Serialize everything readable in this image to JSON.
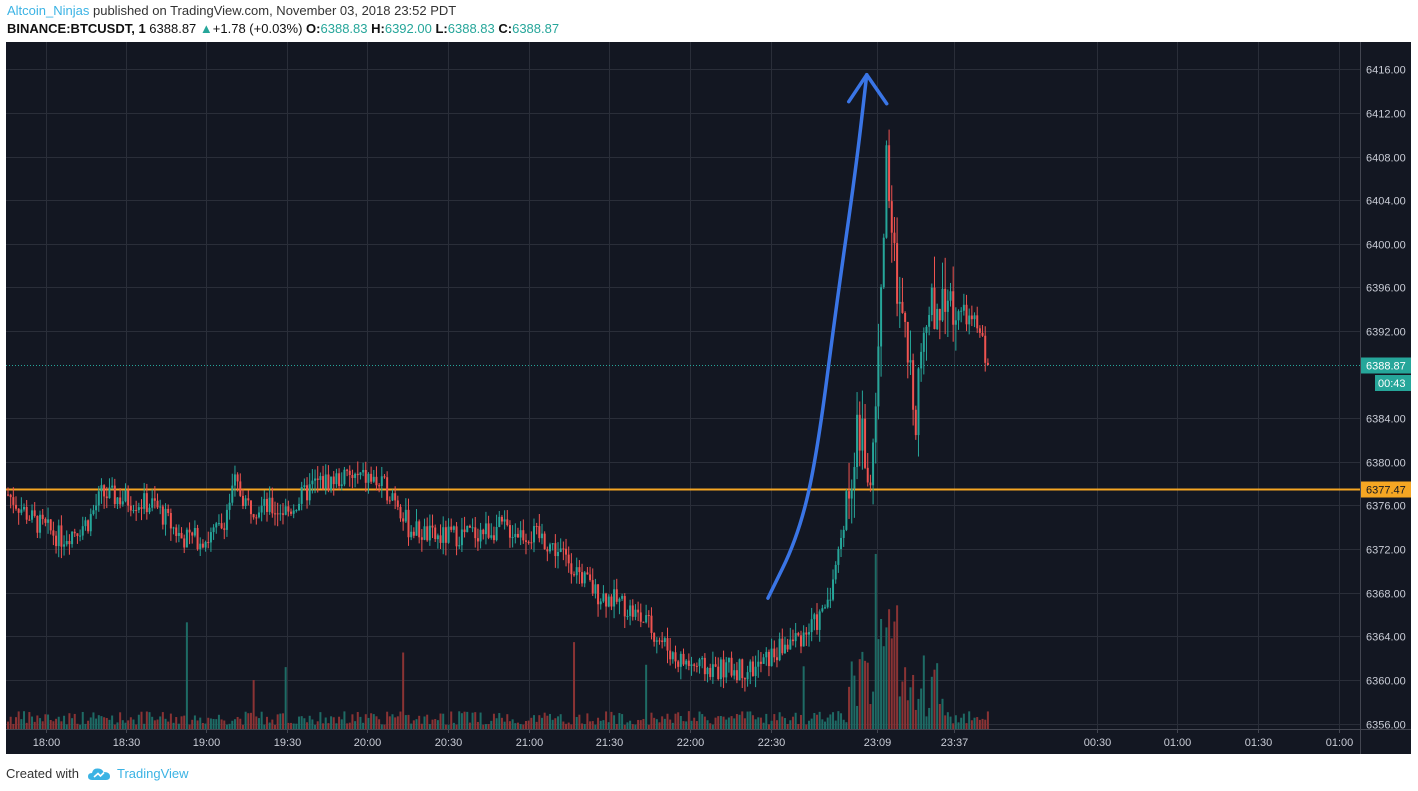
{
  "header": {
    "author": "Altcoin_Ninjas",
    "published_text": " published on TradingView.com, November 03, 2018 23:52 PDT",
    "symbol": "BINANCE:BTCUSDT, 1",
    "last": "6388.87",
    "change": "+1.78 (+0.03%)",
    "o_label": "O:",
    "o": "6388.83",
    "h_label": "H:",
    "h": "6392.00",
    "l_label": "L:",
    "l": "6388.83",
    "c_label": "C:",
    "c": "6388.87"
  },
  "footer": {
    "created_with": "Created with",
    "brand": "TradingView"
  },
  "colors": {
    "background": "#131722",
    "grid": "#2a2e39",
    "up": "#26a69a",
    "down": "#ef5350",
    "up_volume": "#1e6b65",
    "down_volume": "#8a3334",
    "support_line": "#f5a623",
    "arrow": "#3a75e6",
    "axis_text": "#c9ccd6"
  },
  "chart_data": {
    "type": "candlestick",
    "title": "",
    "xlabel": "",
    "ylabel": "",
    "ylim": [
      6355.5,
      6418.5
    ],
    "y_ticks": [
      "6416.00",
      "6412.00",
      "6408.00",
      "6404.00",
      "6400.00",
      "6396.00",
      "6392.00",
      "6384.00",
      "6380.00",
      "6376.00",
      "6372.00",
      "6368.00",
      "6364.00",
      "6360.00",
      "6356.00"
    ],
    "x_ticks": [
      "18:00",
      "18:30",
      "19:00",
      "19:30",
      "20:00",
      "20:30",
      "21:00",
      "21:30",
      "22:00",
      "22:30",
      "23:09",
      "23:37",
      "00:30",
      "01:00",
      "01:30",
      "01:00"
    ],
    "close_series": [
      {
        "time": "17:45",
        "price": 6377
      },
      {
        "time": "17:55",
        "price": 6374.5
      },
      {
        "time": "18:05",
        "price": 6373
      },
      {
        "time": "18:15",
        "price": 6374.5
      },
      {
        "time": "18:20",
        "price": 6377
      },
      {
        "time": "18:30",
        "price": 6376.5
      },
      {
        "time": "18:40",
        "price": 6376
      },
      {
        "time": "18:50",
        "price": 6373
      },
      {
        "time": "19:00",
        "price": 6373
      },
      {
        "time": "19:05",
        "price": 6374
      },
      {
        "time": "19:10",
        "price": 6378
      },
      {
        "time": "19:15",
        "price": 6376
      },
      {
        "time": "19:30",
        "price": 6375.5
      },
      {
        "time": "19:40",
        "price": 6378
      },
      {
        "time": "19:50",
        "price": 6378.5
      },
      {
        "time": "20:00",
        "price": 6378.5
      },
      {
        "time": "20:10",
        "price": 6377
      },
      {
        "time": "20:15",
        "price": 6374
      },
      {
        "time": "20:25",
        "price": 6373
      },
      {
        "time": "20:40",
        "price": 6373.5
      },
      {
        "time": "20:50",
        "price": 6374
      },
      {
        "time": "21:05",
        "price": 6373
      },
      {
        "time": "21:15",
        "price": 6371
      },
      {
        "time": "21:25",
        "price": 6368
      },
      {
        "time": "21:35",
        "price": 6367
      },
      {
        "time": "21:45",
        "price": 6365
      },
      {
        "time": "21:55",
        "price": 6362
      },
      {
        "time": "22:05",
        "price": 6361
      },
      {
        "time": "22:15",
        "price": 6361
      },
      {
        "time": "22:25",
        "price": 6361
      },
      {
        "time": "22:35",
        "price": 6363
      },
      {
        "time": "22:45",
        "price": 6364.5
      },
      {
        "time": "22:50",
        "price": 6366
      },
      {
        "time": "22:55",
        "price": 6370
      },
      {
        "time": "23:00",
        "price": 6378
      },
      {
        "time": "23:03",
        "price": 6383
      },
      {
        "time": "23:06",
        "price": 6381
      },
      {
        "time": "23:08",
        "price": 6377
      },
      {
        "time": "23:10",
        "price": 6386
      },
      {
        "time": "23:12",
        "price": 6395
      },
      {
        "time": "23:14",
        "price": 6408
      },
      {
        "time": "23:16",
        "price": 6403
      },
      {
        "time": "23:18",
        "price": 6394
      },
      {
        "time": "23:20",
        "price": 6392
      },
      {
        "time": "23:23",
        "price": 6388
      },
      {
        "time": "23:25",
        "price": 6385
      },
      {
        "time": "23:27",
        "price": 6391
      },
      {
        "time": "23:30",
        "price": 6394
      },
      {
        "time": "23:35",
        "price": 6395
      },
      {
        "time": "23:40",
        "price": 6394
      },
      {
        "time": "23:45",
        "price": 6393
      },
      {
        "time": "23:49",
        "price": 6392
      },
      {
        "time": "23:52",
        "price": 6388.87
      }
    ],
    "horizontal_lines": [
      {
        "price": 6377.47,
        "label": "6377.47",
        "style": "solid"
      },
      {
        "price": 6388.87,
        "label": "6388.87",
        "style": "dotted"
      }
    ],
    "countdown_label": "00:43",
    "arrow_annotation": [
      {
        "time": "22:30",
        "price": 6367.5
      },
      {
        "time": "22:41",
        "price": 6373
      },
      {
        "time": "22:48",
        "price": 6380
      },
      {
        "time": "22:56",
        "price": 6395
      },
      {
        "time": "23:03",
        "price": 6407
      },
      {
        "time": "23:07",
        "price": 6415.5
      }
    ],
    "grid": true,
    "legend": "none"
  }
}
